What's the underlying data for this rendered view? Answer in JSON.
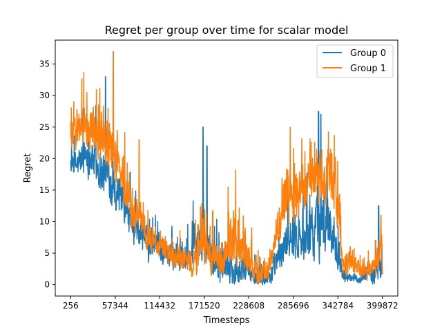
{
  "chart_data": {
    "type": "line",
    "title": "Regret per group over time for scalar model",
    "xlabel": "Timesteps",
    "ylabel": "Regret",
    "xlim": [
      -19500,
      419600
    ],
    "ylim": [
      -1.8,
      38.8
    ],
    "xticks": [
      256,
      57344,
      114432,
      171520,
      228608,
      285696,
      342784,
      399872
    ],
    "xtick_labels": [
      "256",
      "57344",
      "114432",
      "171520",
      "228608",
      "285696",
      "342784",
      "399872"
    ],
    "yticks": [
      0,
      5,
      10,
      15,
      20,
      25,
      30,
      35
    ],
    "ytick_labels": [
      "0",
      "5",
      "10",
      "15",
      "20",
      "25",
      "30",
      "35"
    ],
    "grid": false,
    "legend_position": "top-right",
    "series": [
      {
        "name": "Group 0",
        "color": "#1f77b4",
        "x": [
          256,
          10000,
          20000,
          30000,
          40000,
          50000,
          60000,
          70000,
          80000,
          90000,
          100000,
          110000,
          120000,
          130000,
          140000,
          150000,
          160000,
          170000,
          180000,
          190000,
          200000,
          210000,
          220000,
          230000,
          240000,
          250000,
          260000,
          270000,
          280000,
          290000,
          300000,
          310000,
          320000,
          330000,
          340000,
          350000,
          360000,
          370000,
          380000,
          390000,
          399872
        ],
        "values": [
          19,
          19,
          21,
          20,
          18,
          17,
          15,
          12,
          9,
          8,
          7,
          6,
          5,
          5,
          4,
          4,
          6,
          7,
          5,
          4,
          3,
          2,
          2,
          2,
          1,
          1,
          2,
          5,
          8,
          8,
          6,
          8,
          10,
          10,
          7,
          1,
          1,
          1,
          2,
          2,
          4
        ],
        "noise": [
          2,
          4,
          5,
          5,
          5,
          5,
          5,
          4,
          4,
          4,
          4,
          3,
          3,
          3,
          3,
          3,
          5,
          6,
          5,
          5,
          4,
          3,
          3,
          2,
          2,
          2,
          3,
          4,
          5,
          5,
          5,
          6,
          8,
          7,
          5,
          1,
          1,
          1,
          2,
          3,
          5
        ],
        "peaks": [
          [
            45000,
            33
          ],
          [
            170000,
            25
          ],
          [
            175000,
            22
          ],
          [
            318000,
            27.5
          ],
          [
            321000,
            27
          ],
          [
            395000,
            12.5
          ]
        ]
      },
      {
        "name": "Group 1",
        "color": "#ff7f0e",
        "x": [
          256,
          10000,
          20000,
          30000,
          40000,
          50000,
          60000,
          70000,
          80000,
          90000,
          100000,
          110000,
          120000,
          130000,
          140000,
          150000,
          160000,
          170000,
          180000,
          190000,
          200000,
          210000,
          220000,
          230000,
          240000,
          250000,
          260000,
          270000,
          280000,
          290000,
          300000,
          310000,
          320000,
          330000,
          340000,
          350000,
          360000,
          370000,
          380000,
          390000,
          399872
        ],
        "values": [
          24,
          25,
          25,
          24,
          23,
          22,
          19,
          15,
          11,
          10,
          8,
          7,
          6,
          5,
          4,
          4,
          4,
          6,
          4,
          4,
          5,
          8,
          6,
          4,
          2,
          2,
          4,
          12,
          14,
          14,
          15,
          16,
          17,
          17,
          15,
          3,
          4,
          2,
          2,
          3,
          5
        ],
        "noise": [
          4,
          5,
          6,
          6,
          6,
          6,
          6,
          5,
          5,
          4,
          4,
          3,
          3,
          3,
          3,
          3,
          4,
          5,
          4,
          4,
          5,
          6,
          5,
          4,
          3,
          2,
          4,
          6,
          7,
          6,
          6,
          6,
          6,
          6,
          6,
          3,
          3,
          2,
          2,
          3,
          5
        ],
        "peaks": [
          [
            55000,
            37
          ],
          [
            88000,
            23
          ],
          [
            330000,
            21.5
          ],
          [
            398000,
            11
          ]
        ]
      }
    ]
  }
}
